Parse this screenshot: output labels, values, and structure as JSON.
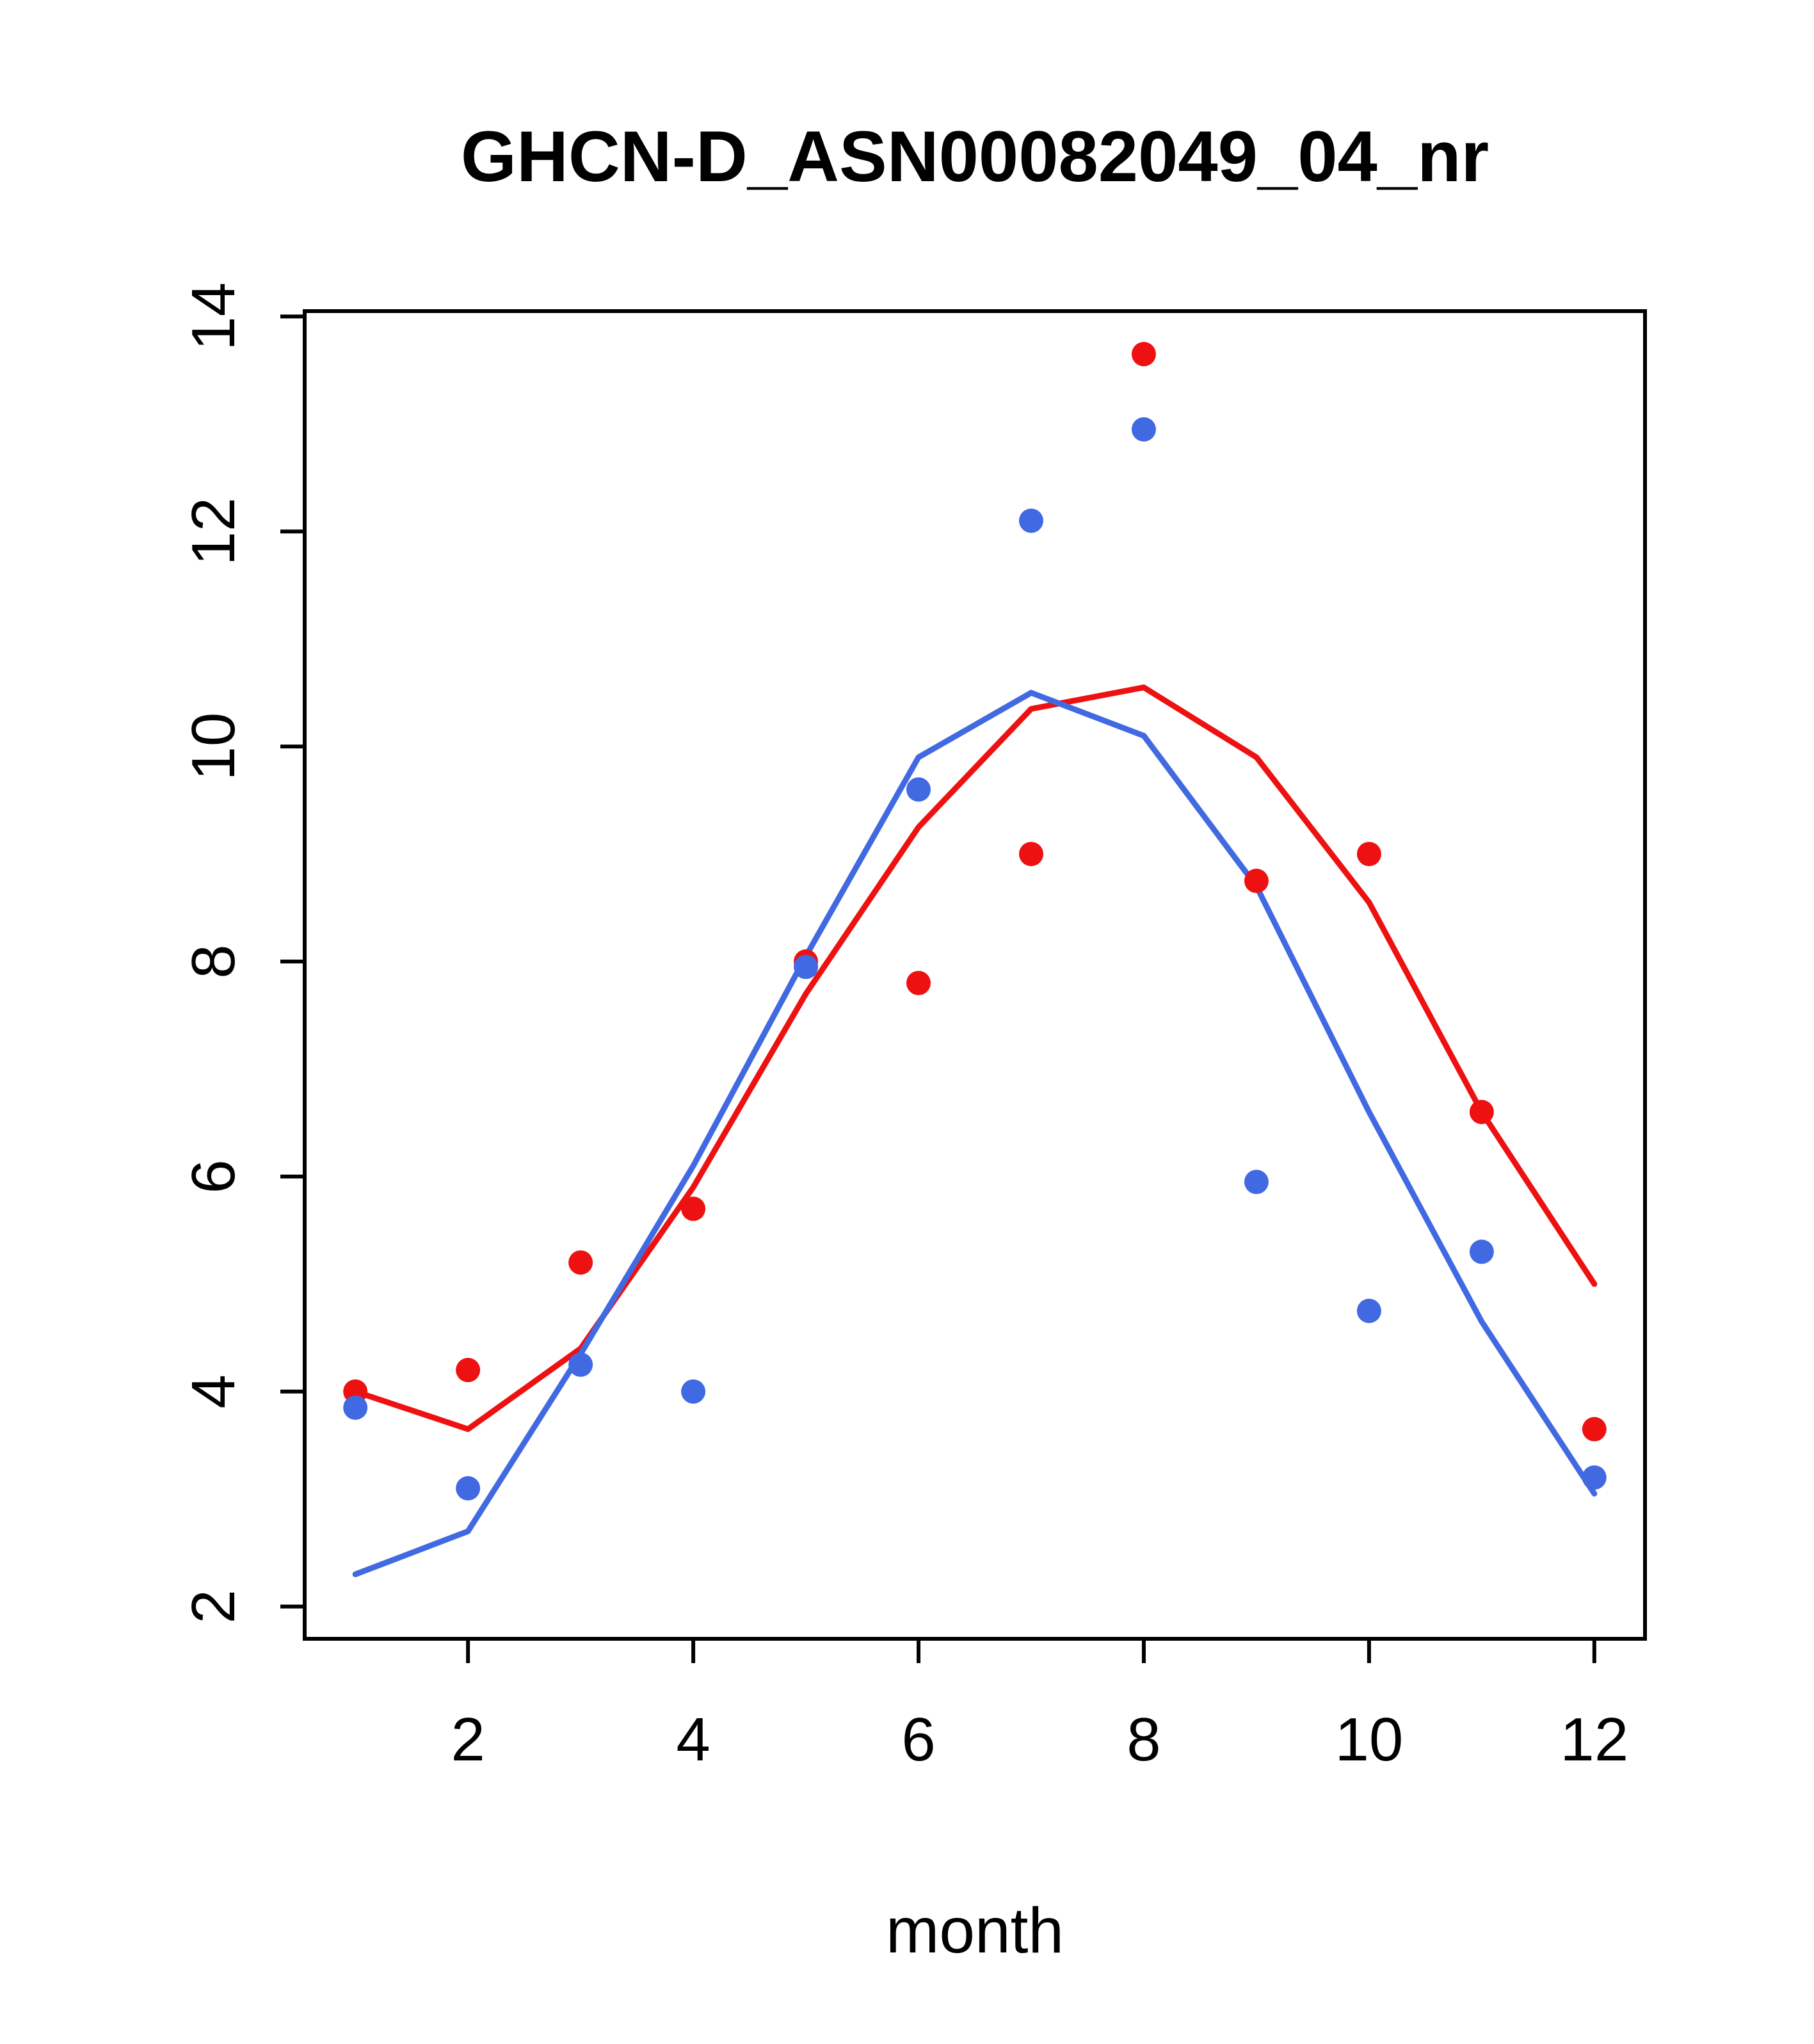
{
  "chart_data": {
    "type": "line",
    "title": "GHCN-D_ASN00082049_04_nr",
    "xlabel": "month",
    "ylabel": "",
    "x": [
      1,
      2,
      3,
      4,
      5,
      6,
      7,
      8,
      9,
      10,
      11,
      12
    ],
    "xticks": [
      2,
      4,
      6,
      8,
      10,
      12
    ],
    "yticks": [
      2,
      4,
      6,
      8,
      10,
      12,
      14
    ],
    "xlim": [
      0.55,
      12.45
    ],
    "ylim": [
      1.7,
      14.05
    ],
    "grid": false,
    "legend": "none",
    "colors": {
      "red": "#ee1111",
      "blue": "#4169e1",
      "axis": "#000000",
      "background": "#ffffff"
    },
    "series": [
      {
        "name": "red-line",
        "style": "line",
        "color": "#ee1111",
        "values": [
          4.0,
          3.65,
          4.4,
          5.9,
          7.7,
          9.25,
          10.35,
          10.55,
          9.9,
          8.55,
          6.6,
          5.0
        ]
      },
      {
        "name": "blue-line",
        "style": "line",
        "color": "#4169e1",
        "values": [
          2.3,
          2.7,
          4.35,
          6.1,
          8.05,
          9.9,
          10.5,
          10.1,
          8.7,
          6.6,
          4.65,
          3.05
        ]
      },
      {
        "name": "red-points",
        "style": "points",
        "color": "#ee1111",
        "values": [
          4.0,
          4.2,
          5.2,
          5.7,
          8.0,
          7.8,
          9.0,
          13.65,
          8.75,
          9.0,
          6.6,
          3.65
        ]
      },
      {
        "name": "blue-points",
        "style": "points",
        "color": "#4169e1",
        "values": [
          3.85,
          3.1,
          4.25,
          4.0,
          7.95,
          9.6,
          12.1,
          12.95,
          5.95,
          4.75,
          5.3,
          3.2
        ]
      }
    ]
  }
}
